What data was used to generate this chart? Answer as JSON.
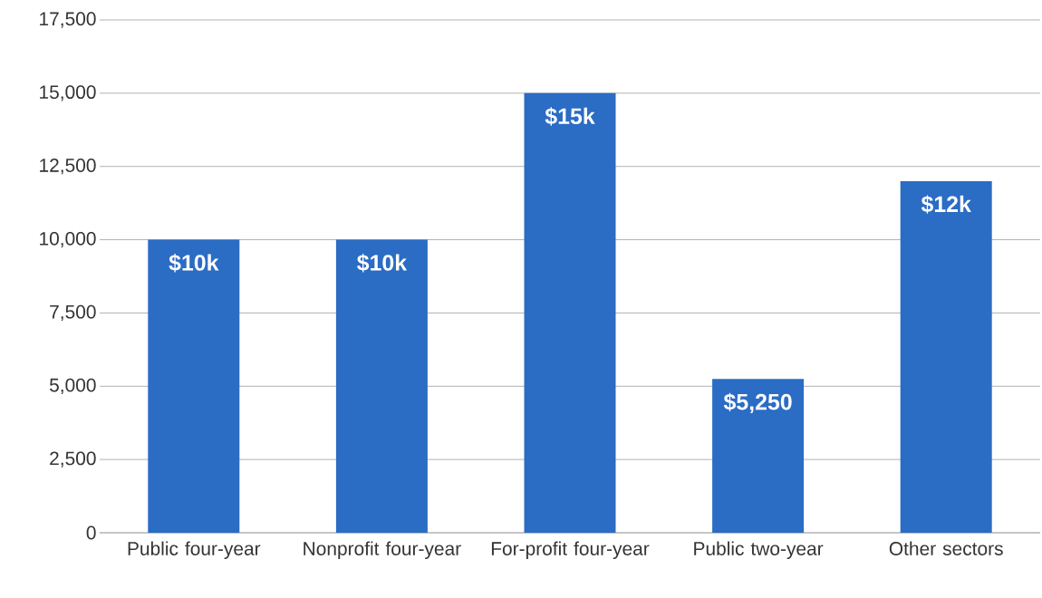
{
  "chart_data": {
    "type": "bar",
    "categories": [
      "Public four-year",
      "Nonprofit four-year",
      "For-profit four-year",
      "Public two-year",
      "Other sectors"
    ],
    "values": [
      10000,
      10000,
      15000,
      5250,
      12000
    ],
    "color": "#2b6cc4",
    "value_labels": [
      "$10k",
      "$10k",
      "$15k",
      "$5,250",
      "$12k"
    ],
    "ylim": [
      0,
      17500
    ],
    "yticks": [
      {
        "value": 0,
        "label": "0"
      },
      {
        "value": 2500,
        "label": "2,500"
      },
      {
        "value": 5000,
        "label": "5,000"
      },
      {
        "value": 7500,
        "label": "7,500"
      },
      {
        "value": 10000,
        "label": "10,000"
      },
      {
        "value": 12500,
        "label": "12,500"
      },
      {
        "value": 15000,
        "label": "15,000"
      },
      {
        "value": 17500,
        "label": "17,500"
      }
    ],
    "grid": "y"
  }
}
